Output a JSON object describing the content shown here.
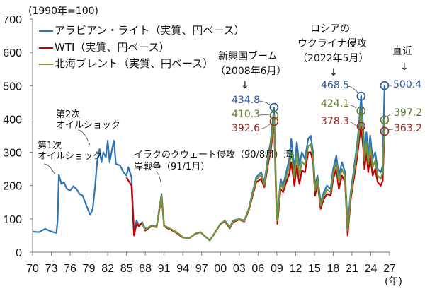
{
  "chart_data": {
    "type": "line",
    "unit_note": "(1990年=100)",
    "xlabel": "(年)",
    "ylabel": "",
    "xlim": [
      1970,
      2027
    ],
    "ylim": [
      0,
      700
    ],
    "yticks": [
      0,
      100,
      200,
      300,
      400,
      500,
      600,
      700
    ],
    "xticks": [
      "70",
      "73",
      "76",
      "79",
      "82",
      "85",
      "88",
      "91",
      "94",
      "97",
      "00",
      "03",
      "06",
      "09",
      "12",
      "15",
      "18",
      "21",
      "24",
      "27"
    ],
    "grid": false,
    "legend_position": "top-left",
    "series": [
      {
        "name": "アラビアン・ライト（実質、円ベース）",
        "color": "#2e75b6",
        "points": [
          [
            1970,
            62
          ],
          [
            1971,
            60
          ],
          [
            1972,
            70
          ],
          [
            1972.5,
            66
          ],
          [
            1973,
            62
          ],
          [
            1973.8,
            58
          ],
          [
            1974,
            95
          ],
          [
            1974.2,
            232
          ],
          [
            1974.6,
            205
          ],
          [
            1975,
            210
          ],
          [
            1975.5,
            190
          ],
          [
            1976,
            185
          ],
          [
            1976.5,
            198
          ],
          [
            1977,
            190
          ],
          [
            1977.5,
            175
          ],
          [
            1978,
            170
          ],
          [
            1978.6,
            140
          ],
          [
            1979.2,
            112
          ],
          [
            1979.6,
            130
          ],
          [
            1980,
            200
          ],
          [
            1980.3,
            270
          ],
          [
            1980.7,
            310
          ],
          [
            1981,
            270
          ],
          [
            1981.3,
            300
          ],
          [
            1981.7,
            285
          ],
          [
            1982,
            335
          ],
          [
            1982.3,
            270
          ],
          [
            1982.7,
            310
          ],
          [
            1983,
            335
          ],
          [
            1983.3,
            265
          ],
          [
            1984,
            260
          ],
          [
            1984.5,
            240
          ],
          [
            1985,
            230
          ],
          [
            1985.3,
            255
          ],
          [
            1985.8,
            225
          ],
          [
            1986.2,
            60
          ],
          [
            1986.6,
            95
          ],
          [
            1987,
            80
          ],
          [
            1987.5,
            90
          ],
          [
            1988,
            70
          ],
          [
            1988.5,
            75
          ],
          [
            1989,
            80
          ],
          [
            1989.8,
            78
          ],
          [
            1990.6,
            175
          ],
          [
            1991,
            80
          ],
          [
            1991.5,
            75
          ],
          [
            1992,
            70
          ],
          [
            1993,
            60
          ],
          [
            1993.7,
            50
          ],
          [
            1994,
            45
          ],
          [
            1995,
            42
          ],
          [
            1996,
            55
          ],
          [
            1996.8,
            60
          ],
          [
            1997.5,
            48
          ],
          [
            1998.3,
            35
          ],
          [
            1999,
            55
          ],
          [
            2000,
            85
          ],
          [
            2000.7,
            95
          ],
          [
            2001.5,
            75
          ],
          [
            2002,
            95
          ],
          [
            2003,
            100
          ],
          [
            2003.8,
            95
          ],
          [
            2004.5,
            130
          ],
          [
            2005,
            170
          ],
          [
            2005.7,
            225
          ],
          [
            2006.5,
            240
          ],
          [
            2007,
            210
          ],
          [
            2007.7,
            300
          ],
          [
            2008,
            330
          ],
          [
            2008.55,
            434.8
          ],
          [
            2008.9,
            180
          ],
          [
            2009.1,
            100
          ],
          [
            2009.6,
            220
          ],
          [
            2010,
            200
          ],
          [
            2010.5,
            240
          ],
          [
            2011,
            280
          ],
          [
            2011.3,
            340
          ],
          [
            2011.8,
            250
          ],
          [
            2012.2,
            330
          ],
          [
            2012.6,
            260
          ],
          [
            2013,
            300
          ],
          [
            2013.5,
            280
          ],
          [
            2014,
            340
          ],
          [
            2014.4,
            350
          ],
          [
            2014.8,
            300
          ],
          [
            2015.1,
            200
          ],
          [
            2015.5,
            230
          ],
          [
            2016,
            150
          ],
          [
            2016.5,
            180
          ],
          [
            2017,
            200
          ],
          [
            2017.6,
            190
          ],
          [
            2018,
            250
          ],
          [
            2018.5,
            290
          ],
          [
            2018.9,
            230
          ],
          [
            2019.4,
            270
          ],
          [
            2019.9,
            240
          ],
          [
            2020.3,
            80
          ],
          [
            2020.8,
            180
          ],
          [
            2021.3,
            250
          ],
          [
            2021.8,
            320
          ],
          [
            2022.1,
            380
          ],
          [
            2022.45,
            468.5
          ],
          [
            2022.8,
            370
          ],
          [
            2023,
            300
          ],
          [
            2023.3,
            360
          ],
          [
            2023.6,
            290
          ],
          [
            2023.9,
            350
          ],
          [
            2024.3,
            280
          ],
          [
            2024.7,
            300
          ],
          [
            2025.1,
            250
          ],
          [
            2025.6,
            240
          ],
          [
            2025.9,
            260
          ],
          [
            2026.2,
            500.4
          ]
        ]
      },
      {
        "name": "WTI（実質、円ベース）",
        "color": "#c00000",
        "points": [
          [
            1985,
            225
          ],
          [
            1985.3,
            215
          ],
          [
            1985.8,
            200
          ],
          [
            1986.2,
            50
          ],
          [
            1986.6,
            85
          ],
          [
            1987,
            78
          ],
          [
            1987.5,
            88
          ],
          [
            1988,
            65
          ],
          [
            1988.5,
            72
          ],
          [
            1989,
            78
          ],
          [
            1989.8,
            75
          ],
          [
            1990.6,
            165
          ],
          [
            1991,
            78
          ],
          [
            1991.5,
            72
          ],
          [
            1992,
            68
          ],
          [
            1993,
            58
          ],
          [
            1993.7,
            48
          ],
          [
            1994,
            44
          ],
          [
            1995,
            42
          ],
          [
            1996,
            55
          ],
          [
            1996.8,
            60
          ],
          [
            1997.5,
            48
          ],
          [
            1998.3,
            36
          ],
          [
            1999,
            55
          ],
          [
            2000,
            85
          ],
          [
            2000.7,
            92
          ],
          [
            2001.5,
            72
          ],
          [
            2002,
            90
          ],
          [
            2003,
            98
          ],
          [
            2003.8,
            92
          ],
          [
            2004.5,
            125
          ],
          [
            2005,
            160
          ],
          [
            2005.7,
            210
          ],
          [
            2006.5,
            220
          ],
          [
            2007,
            195
          ],
          [
            2007.7,
            275
          ],
          [
            2008,
            300
          ],
          [
            2008.55,
            392.6
          ],
          [
            2008.9,
            150
          ],
          [
            2009.1,
            85
          ],
          [
            2009.6,
            190
          ],
          [
            2010,
            180
          ],
          [
            2010.5,
            210
          ],
          [
            2011,
            235
          ],
          [
            2011.3,
            270
          ],
          [
            2011.8,
            200
          ],
          [
            2012.2,
            260
          ],
          [
            2012.6,
            205
          ],
          [
            2013,
            245
          ],
          [
            2013.5,
            240
          ],
          [
            2014,
            300
          ],
          [
            2014.4,
            300
          ],
          [
            2014.8,
            270
          ],
          [
            2015.1,
            170
          ],
          [
            2015.5,
            210
          ],
          [
            2016,
            130
          ],
          [
            2016.5,
            160
          ],
          [
            2017,
            175
          ],
          [
            2017.6,
            170
          ],
          [
            2018,
            220
          ],
          [
            2018.5,
            250
          ],
          [
            2018.9,
            190
          ],
          [
            2019.4,
            230
          ],
          [
            2019.9,
            210
          ],
          [
            2020.3,
            50
          ],
          [
            2020.8,
            160
          ],
          [
            2021.3,
            220
          ],
          [
            2021.8,
            280
          ],
          [
            2022.1,
            330
          ],
          [
            2022.45,
            378.3
          ],
          [
            2022.8,
            310
          ],
          [
            2023,
            250
          ],
          [
            2023.3,
            300
          ],
          [
            2023.6,
            240
          ],
          [
            2023.9,
            290
          ],
          [
            2024.3,
            230
          ],
          [
            2024.7,
            250
          ],
          [
            2025.1,
            210
          ],
          [
            2025.6,
            200
          ],
          [
            2025.9,
            215
          ],
          [
            2026.2,
            363.2
          ]
        ]
      },
      {
        "name": "北海ブレント（実質、円ベース）",
        "color": "#70953a",
        "points": [
          [
            1987.5,
            88
          ],
          [
            1988,
            68
          ],
          [
            1988.5,
            74
          ],
          [
            1989,
            80
          ],
          [
            1989.8,
            77
          ],
          [
            1990.6,
            170
          ],
          [
            1991,
            80
          ],
          [
            1991.5,
            74
          ],
          [
            1992,
            70
          ],
          [
            1993,
            60
          ],
          [
            1993.7,
            50
          ],
          [
            1994,
            45
          ],
          [
            1995,
            42
          ],
          [
            1996,
            56
          ],
          [
            1996.8,
            60
          ],
          [
            1997.5,
            48
          ],
          [
            1998.3,
            35
          ],
          [
            1999,
            56
          ],
          [
            2000,
            86
          ],
          [
            2000.7,
            94
          ],
          [
            2001.5,
            74
          ],
          [
            2002,
            93
          ],
          [
            2003,
            99
          ],
          [
            2003.8,
            94
          ],
          [
            2004.5,
            128
          ],
          [
            2005,
            165
          ],
          [
            2005.7,
            218
          ],
          [
            2006.5,
            232
          ],
          [
            2007,
            202
          ],
          [
            2007.7,
            288
          ],
          [
            2008,
            315
          ],
          [
            2008.55,
            410.3
          ],
          [
            2008.9,
            165
          ],
          [
            2009.1,
            95
          ],
          [
            2009.6,
            205
          ],
          [
            2010,
            190
          ],
          [
            2010.5,
            225
          ],
          [
            2011,
            258
          ],
          [
            2011.3,
            305
          ],
          [
            2011.8,
            225
          ],
          [
            2012.2,
            295
          ],
          [
            2012.6,
            232
          ],
          [
            2013,
            272
          ],
          [
            2013.5,
            262
          ],
          [
            2014,
            318
          ],
          [
            2014.4,
            325
          ],
          [
            2014.8,
            285
          ],
          [
            2015.1,
            185
          ],
          [
            2015.5,
            220
          ],
          [
            2016,
            140
          ],
          [
            2016.5,
            170
          ],
          [
            2017,
            188
          ],
          [
            2017.6,
            180
          ],
          [
            2018,
            235
          ],
          [
            2018.5,
            270
          ],
          [
            2018.9,
            210
          ],
          [
            2019.4,
            250
          ],
          [
            2019.9,
            225
          ],
          [
            2020.3,
            65
          ],
          [
            2020.8,
            170
          ],
          [
            2021.3,
            235
          ],
          [
            2021.8,
            300
          ],
          [
            2022.1,
            355
          ],
          [
            2022.45,
            424.1
          ],
          [
            2022.8,
            340
          ],
          [
            2023,
            275
          ],
          [
            2023.3,
            330
          ],
          [
            2023.6,
            265
          ],
          [
            2023.9,
            320
          ],
          [
            2024.3,
            255
          ],
          [
            2024.7,
            275
          ],
          [
            2025.1,
            230
          ],
          [
            2025.6,
            220
          ],
          [
            2025.9,
            238
          ],
          [
            2026.2,
            397.2
          ]
        ]
      }
    ],
    "annotations": {
      "first_shock": [
        "第1次",
        "オイルショック"
      ],
      "second_shock": [
        "第2次",
        "オイルショック"
      ],
      "gulf_war": [
        "イラクのクウェート侵攻（90/8月）湾",
        "岸戦争（91/1月）"
      ],
      "emerging": [
        "新興国ブーム",
        "（2008年6月）"
      ],
      "ukraine": [
        "ロシアの",
        "ウクライナ侵攻",
        "（2022年5月）"
      ],
      "latest": [
        "直近"
      ],
      "arrow": "↓"
    },
    "peak_labels": {
      "p2008": {
        "blue": "434.8",
        "green": "410.3",
        "red": "392.6"
      },
      "p2022": {
        "blue": "468.5",
        "green": "424.1",
        "red": "378.3"
      },
      "latest": {
        "blue": "500.4",
        "green": "397.2",
        "red": "363.2"
      }
    },
    "label_colors": {
      "blue": "#2f5597",
      "green": "#5f7f2a",
      "red": "#9c2a22"
    }
  }
}
